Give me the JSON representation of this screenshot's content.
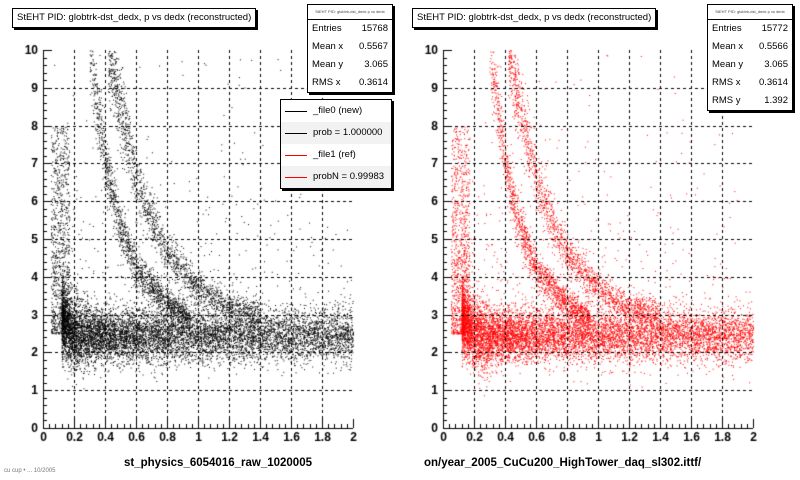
{
  "colors": {
    "new": "#000000",
    "ref": "#ff0000",
    "grid": "#000000"
  },
  "footer_text": "cu cup • ... 10/2005",
  "chart_data": [
    {
      "type": "scatter",
      "title": "StEHT PID: globtrk-dst_dedx,  p vs dedx (reconstructed)",
      "xlabel": "st_physics_6054016_raw_1020005",
      "ylabel": "",
      "xlim": [
        0,
        2
      ],
      "ylim": [
        0,
        10
      ],
      "xticks": [
        "0",
        "0.2",
        "0.4",
        "0.6",
        "0.8",
        "1",
        "1.2",
        "1.4",
        "1.6",
        "1.8",
        "2"
      ],
      "yticks": [
        "0",
        "1",
        "2",
        "3",
        "4",
        "5",
        "6",
        "7",
        "8",
        "9",
        "10"
      ],
      "grid": true,
      "color": "#000000",
      "stats": {
        "header": "StEHT PID: globtrk-dst_dedx p vs dedx",
        "rows": [
          {
            "label": "Entries",
            "value": "15768"
          },
          {
            "label": "Mean x",
            "value": "0.5567"
          },
          {
            "label": "Mean y",
            "value": "3.065"
          },
          {
            "label": "RMS x",
            "value": "0.3614"
          }
        ]
      },
      "legend": [
        {
          "label": "_file0 (new)",
          "color": "#000000"
        },
        {
          "label": "prob = 1.000000",
          "color": "#000000"
        },
        {
          "label": "_file1 (ref)",
          "color": "#ff0000"
        },
        {
          "label": "probN = 0.99983",
          "color": "#ff0000"
        }
      ],
      "bands": [
        {
          "name": "pion band",
          "p_range": [
            0.12,
            2.0
          ],
          "dedx_center": 2.45,
          "spread": 0.35
        },
        {
          "name": "kaon band",
          "p_range": [
            0.3,
            0.95
          ],
          "dedx_at_p": [
            [
              0.3,
              10
            ],
            [
              0.4,
              7.0
            ],
            [
              0.5,
              5.3
            ],
            [
              0.6,
              4.2
            ],
            [
              0.8,
              3.3
            ],
            [
              0.95,
              2.9
            ]
          ]
        },
        {
          "name": "proton band",
          "p_range": [
            0.42,
            1.4
          ],
          "dedx_at_p": [
            [
              0.42,
              10
            ],
            [
              0.5,
              8.5
            ],
            [
              0.6,
              6.6
            ],
            [
              0.7,
              5.5
            ],
            [
              0.8,
              4.6
            ],
            [
              1.0,
              3.7
            ],
            [
              1.2,
              3.2
            ],
            [
              1.4,
              3.0
            ]
          ]
        }
      ]
    },
    {
      "type": "scatter",
      "title": "StEHT PID: globtrk-dst_dedx,  p vs dedx (reconstructed)",
      "xlabel": "on/year_2005_CuCu200_HighTower_daq_sl302.ittf/",
      "ylabel": "",
      "xlim": [
        0,
        2
      ],
      "ylim": [
        0,
        10
      ],
      "xticks": [
        "0",
        "0.2",
        "0.4",
        "0.6",
        "0.8",
        "1",
        "1.2",
        "1.4",
        "1.6",
        "1.8",
        "2"
      ],
      "yticks": [
        "0",
        "1",
        "2",
        "3",
        "4",
        "5",
        "6",
        "7",
        "8",
        "9",
        "10"
      ],
      "grid": true,
      "color": "#ff0000",
      "stats": {
        "header": "StEHT PID: globtrk-dst_dedx p vs dedx",
        "rows": [
          {
            "label": "Entries",
            "value": "15772"
          },
          {
            "label": "Mean x",
            "value": "0.5566"
          },
          {
            "label": "Mean y",
            "value": "3.065"
          },
          {
            "label": "RMS x",
            "value": "0.3614"
          },
          {
            "label": "RMS y",
            "value": "1.392"
          }
        ]
      },
      "legend": [],
      "bands": [
        {
          "name": "pion band",
          "p_range": [
            0.12,
            2.0
          ],
          "dedx_center": 2.45,
          "spread": 0.35
        },
        {
          "name": "kaon band",
          "p_range": [
            0.3,
            0.95
          ],
          "dedx_at_p": [
            [
              0.3,
              10
            ],
            [
              0.4,
              7.0
            ],
            [
              0.5,
              5.3
            ],
            [
              0.6,
              4.2
            ],
            [
              0.8,
              3.3
            ],
            [
              0.95,
              2.9
            ]
          ]
        },
        {
          "name": "proton band",
          "p_range": [
            0.42,
            1.4
          ],
          "dedx_at_p": [
            [
              0.42,
              10
            ],
            [
              0.5,
              8.5
            ],
            [
              0.6,
              6.6
            ],
            [
              0.7,
              5.5
            ],
            [
              0.8,
              4.6
            ],
            [
              1.0,
              3.7
            ],
            [
              1.2,
              3.2
            ],
            [
              1.4,
              3.0
            ]
          ]
        }
      ]
    }
  ]
}
